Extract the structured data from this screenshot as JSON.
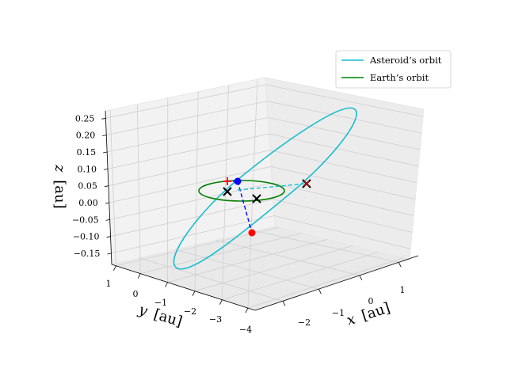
{
  "chart_data": {
    "type": "line",
    "projection": "3d",
    "axes": {
      "x": {
        "label_var": "x",
        "label_unit": "[au]",
        "ticks": [
          "−2",
          "−1",
          "0",
          "1"
        ],
        "range": [
          -2.8,
          1.8
        ]
      },
      "y": {
        "label_var": "y",
        "label_unit": "[au]",
        "ticks": [
          "1",
          "0",
          "−1",
          "−2",
          "−3",
          "−4"
        ],
        "range": [
          1.5,
          -4.2
        ]
      },
      "z": {
        "label_var": "z",
        "label_unit": "[au]",
        "ticks": [
          "0.25",
          "0.20",
          "0.15",
          "0.10",
          "0.05",
          "0.00",
          "−0.05",
          "−0.10",
          "−0.15"
        ],
        "range": [
          -0.16,
          0.27
        ]
      }
    },
    "grid": true,
    "legend": {
      "placement": "top-right",
      "entries": [
        {
          "label": "Asteroid’s orbit",
          "color": "#17becf"
        },
        {
          "label": "Earth’s orbit",
          "color": "#008000"
        }
      ]
    },
    "series": [
      {
        "name": "Asteroid’s orbit",
        "kind": "ellipse",
        "color": "#17becf",
        "semi_major_axis": 2.5,
        "eccentricity": 0.55,
        "inclination_deg": 4
      },
      {
        "name": "Earth’s orbit",
        "kind": "circle",
        "color": "#008000",
        "radius": 1.0
      }
    ],
    "markers": [
      {
        "name": "blue-point",
        "color": "#0000ff",
        "shape": "circle",
        "x": -0.3,
        "y": 0.9,
        "z": 0.07
      },
      {
        "name": "red-point",
        "color": "#ff0000",
        "shape": "circle",
        "x": 0.9,
        "y": -1.0,
        "z": -0.07
      },
      {
        "name": "red-plus",
        "color": "#ff0000",
        "shape": "plus",
        "x": -0.7,
        "y": 1.1,
        "z": 0.07
      },
      {
        "name": "cross-a",
        "color": "#000000",
        "shape": "x",
        "x": -1.0,
        "y": 0.5,
        "z": 0.02
      },
      {
        "name": "cross-b",
        "color": "#000000",
        "shape": "x",
        "x": 0.4,
        "y": -0.5,
        "z": 0.0
      },
      {
        "name": "cross-c",
        "color": "#000000",
        "shape": "x",
        "x": -0.1,
        "y": -2.3,
        "z": 0.05
      },
      {
        "name": "cross-c-red",
        "color": "#ff0000",
        "shape": "x",
        "x": -0.1,
        "y": -2.3,
        "z": 0.05
      }
    ],
    "connectors": [
      {
        "name": "blue-dashed-line",
        "color": "#0000ff",
        "style": "dashed",
        "from": "blue-point",
        "to": "red-point"
      },
      {
        "name": "cyan-dashed-line",
        "color": "#17becf",
        "style": "dashed",
        "from": "blue-point",
        "to": "cross-c"
      }
    ]
  }
}
